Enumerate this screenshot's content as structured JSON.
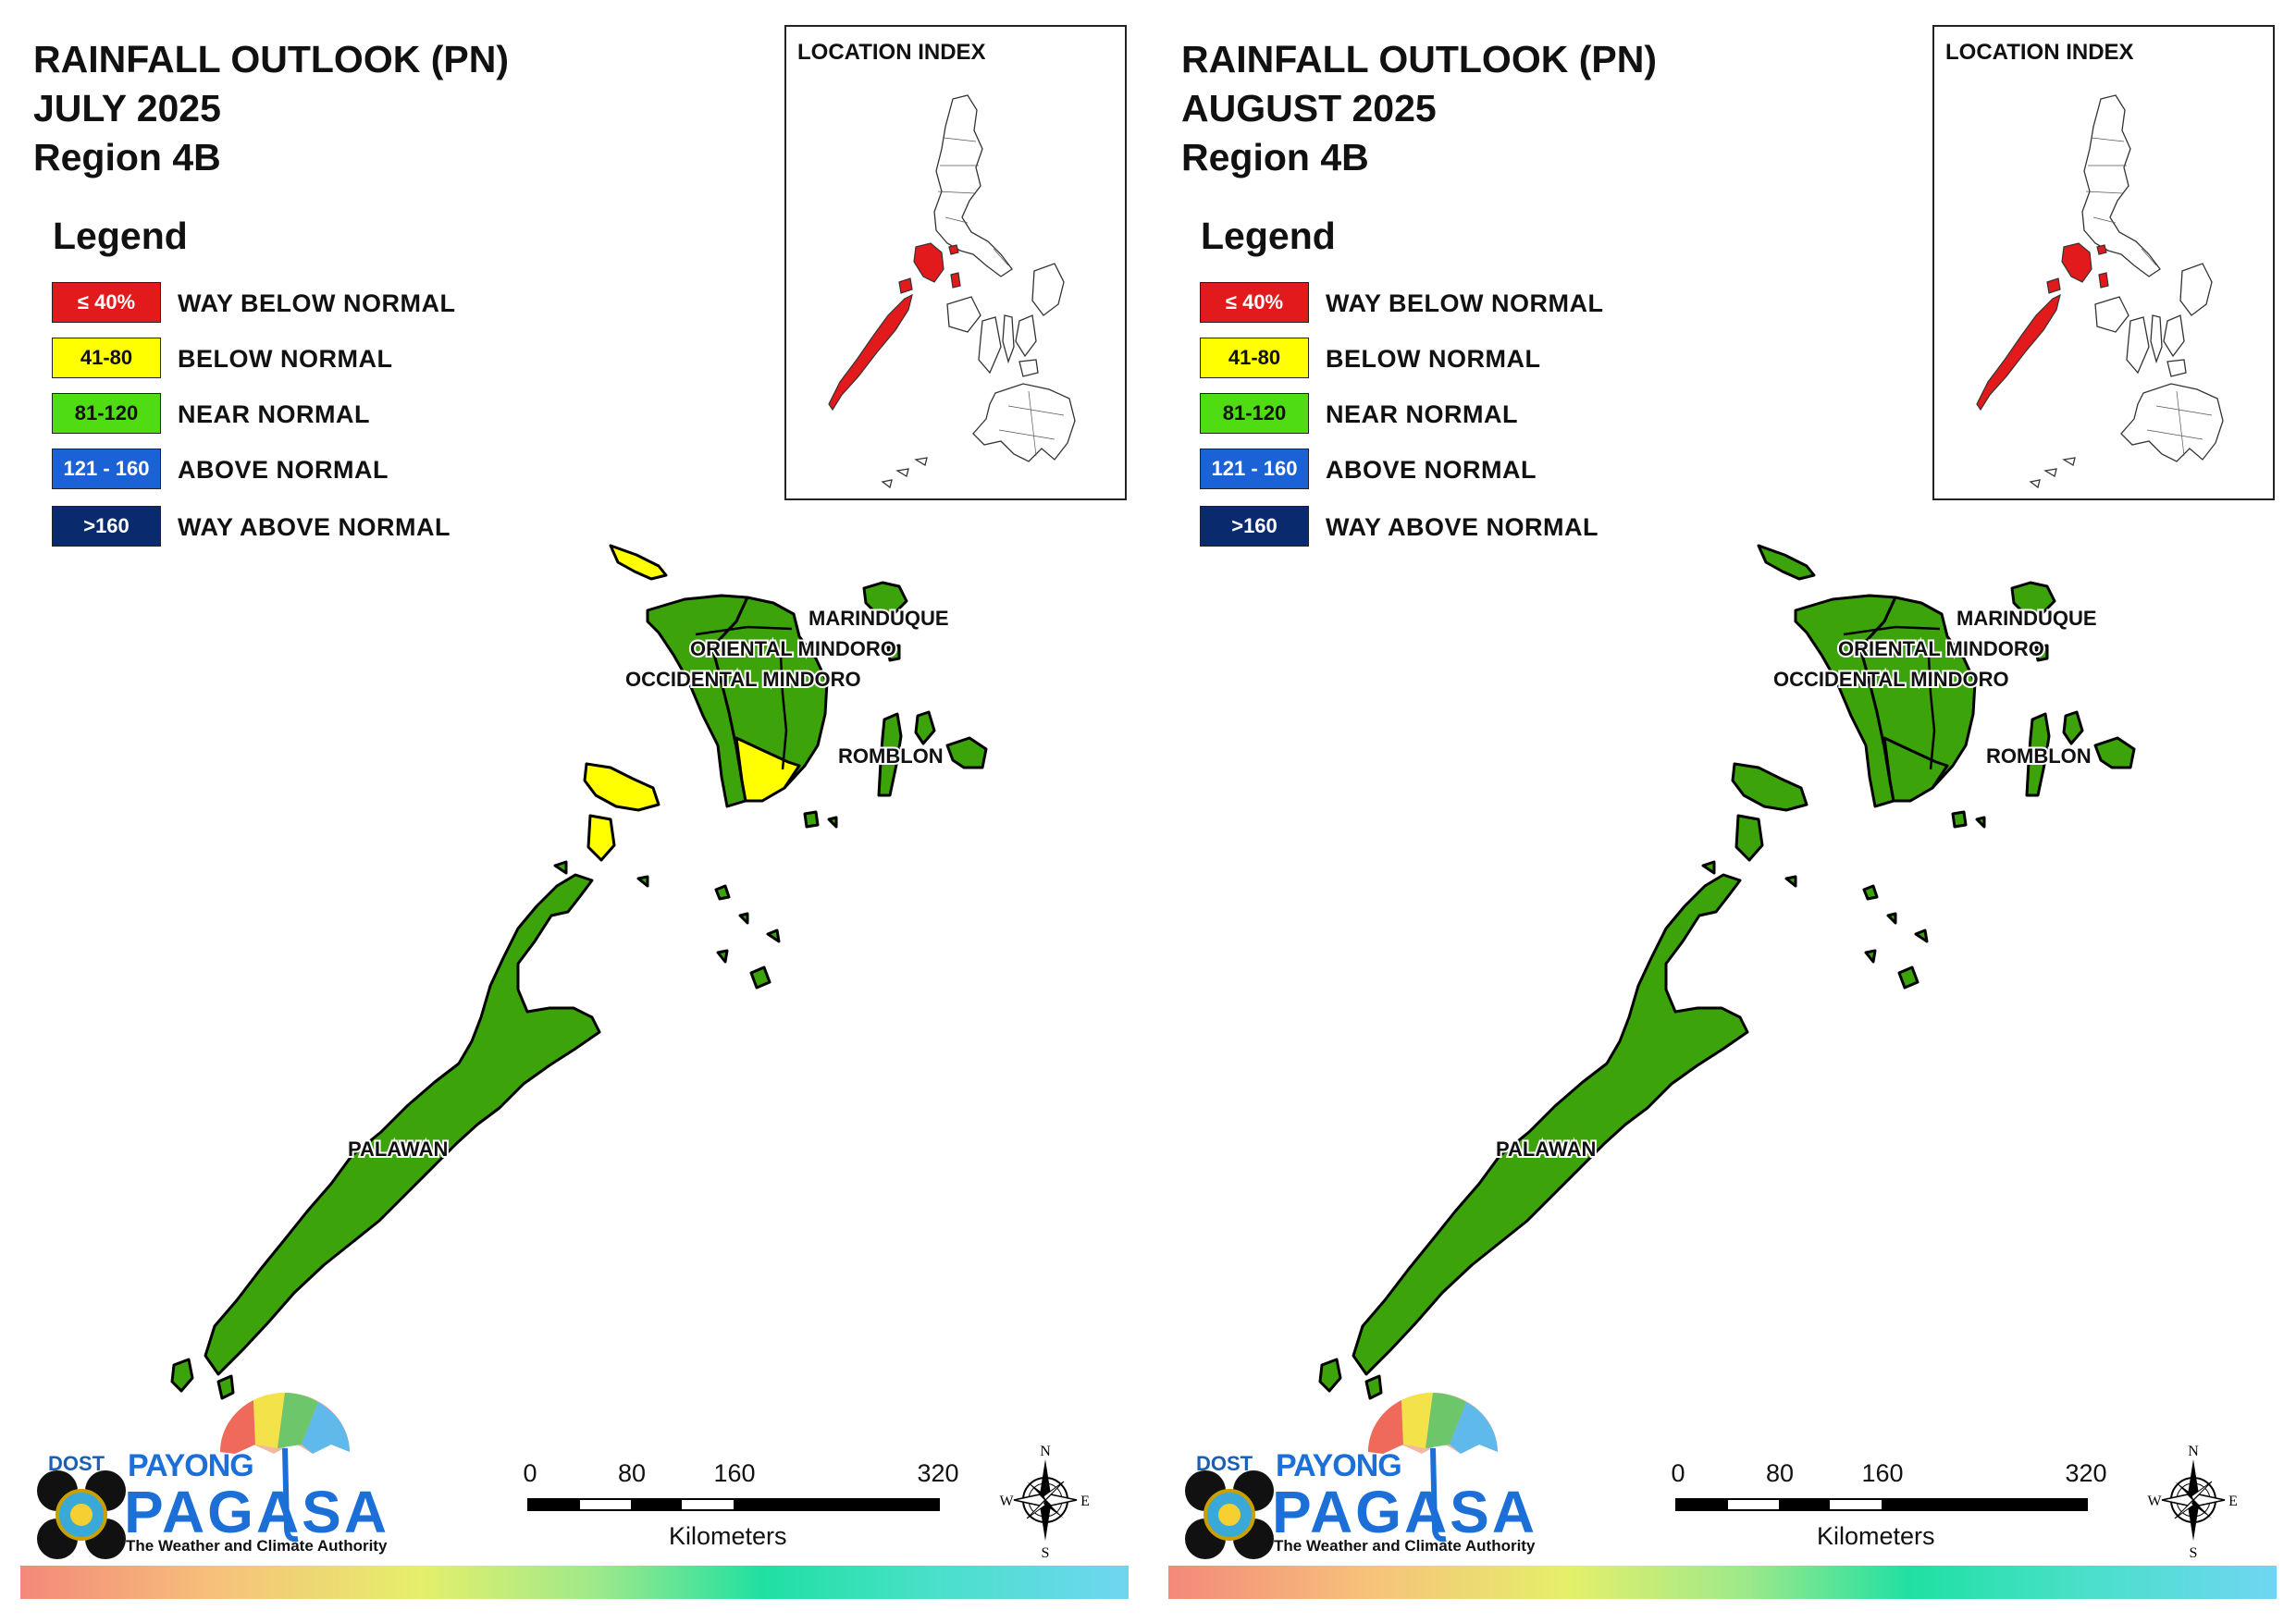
{
  "panels": [
    {
      "title_line1": "RAINFALL OUTLOOK (PN)",
      "title_line2": "JULY 2025",
      "title_line3": "Region 4B",
      "fill_by_province": {
        "occidental_mindoro": "#3ca30a",
        "oriental_mindoro": "#3ca30a",
        "mindoro_south_tip": "#ffff00",
        "marinduque": "#3ca30a",
        "romblon": "#3ca30a",
        "lubang_island": "#ffff00",
        "busuanga_calamian": "#ffff00",
        "palawan": "#3ca30a"
      }
    },
    {
      "title_line1": "RAINFALL OUTLOOK (PN)",
      "title_line2": "AUGUST 2025",
      "title_line3": "Region 4B",
      "fill_by_province": {
        "occidental_mindoro": "#3ca30a",
        "oriental_mindoro": "#3ca30a",
        "mindoro_south_tip": "#3ca30a",
        "marinduque": "#3ca30a",
        "romblon": "#3ca30a",
        "lubang_island": "#3ca30a",
        "busuanga_calamian": "#3ca30a",
        "palawan": "#3ca30a"
      }
    }
  ],
  "legend": {
    "title": "Legend",
    "items": [
      {
        "range": "≤ 40%",
        "label": "WAY BELOW NORMAL",
        "color": "#e31a1c",
        "text_color": "#ffffff"
      },
      {
        "range": "41-80",
        "label": "BELOW NORMAL",
        "color": "#ffff00",
        "text_color": "#111111"
      },
      {
        "range": "81-120",
        "label": "NEAR NORMAL",
        "color": "#4fdc12",
        "text_color": "#111111"
      },
      {
        "range": "121 - 160",
        "label": "ABOVE NORMAL",
        "color": "#1a62d6",
        "text_color": "#ffffff"
      },
      {
        "range": ">160",
        "label": "WAY ABOVE NORMAL",
        "color": "#0a2a6e",
        "text_color": "#ffffff"
      }
    ]
  },
  "location_index": {
    "title": "LOCATION INDEX",
    "highlight_color": "#e31a1c"
  },
  "provinces": {
    "marinduque": "MARINDUQUE",
    "oriental_mindoro": "ORIENTAL MINDORO",
    "occidental_mindoro": "OCCIDENTAL MINDORO",
    "romblon": "ROMBLON",
    "palawan": "PALAWAN"
  },
  "scale": {
    "ticks": [
      "0",
      "80",
      "160",
      "320"
    ],
    "unit": "Kilometers"
  },
  "compass": {
    "n": "N",
    "e": "E",
    "s": "S",
    "w": "W"
  },
  "logo": {
    "dost": "DOST",
    "payong": "PAYONG",
    "pagasa": "PAGASA",
    "tagline": "The Weather and Climate Authority"
  },
  "icons": {
    "compass": "compass-rose-icon",
    "umbrella": "umbrella-icon",
    "seal": "dost-seal-icon"
  }
}
